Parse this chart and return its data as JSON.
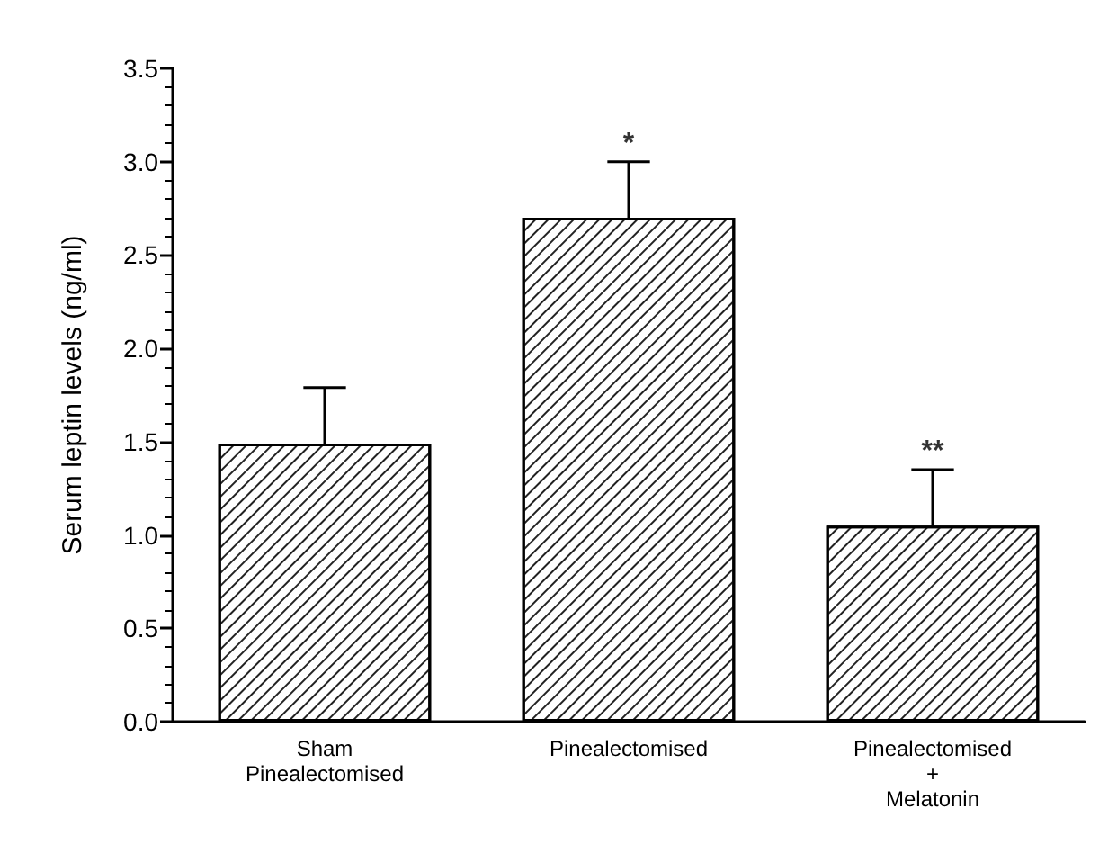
{
  "chart_data": {
    "type": "bar",
    "ylabel": "Serum leptin levels (ng/ml)",
    "categories": [
      "Sham\nPinealectomised",
      "Pinealectomised",
      "Pinealectomised\n+\nMelatonin"
    ],
    "values": [
      1.49,
      2.7,
      1.05
    ],
    "errors": [
      0.3,
      0.3,
      0.3
    ],
    "color": "#ffffff",
    "ylim": [
      0,
      3.5
    ],
    "yticks": [
      {
        "value": 0,
        "label": "0.0"
      },
      {
        "value": 0.5,
        "label": "0.5"
      },
      {
        "value": 1,
        "label": "1.0"
      },
      {
        "value": 1.5,
        "label": "1.5"
      },
      {
        "value": 2,
        "label": "2.0"
      },
      {
        "value": 2.5,
        "label": "2.5"
      },
      {
        "value": 3,
        "label": "3.0"
      },
      {
        "value": 3.5,
        "label": "3.5"
      }
    ],
    "annotations": [
      {
        "text": "*",
        "x": "Pinealectomised",
        "y": 3.0
      },
      {
        "text": "**",
        "x": "Pinealectomised\n+\nMelatonin",
        "y": 1.35
      }
    ],
    "grid": false
  }
}
